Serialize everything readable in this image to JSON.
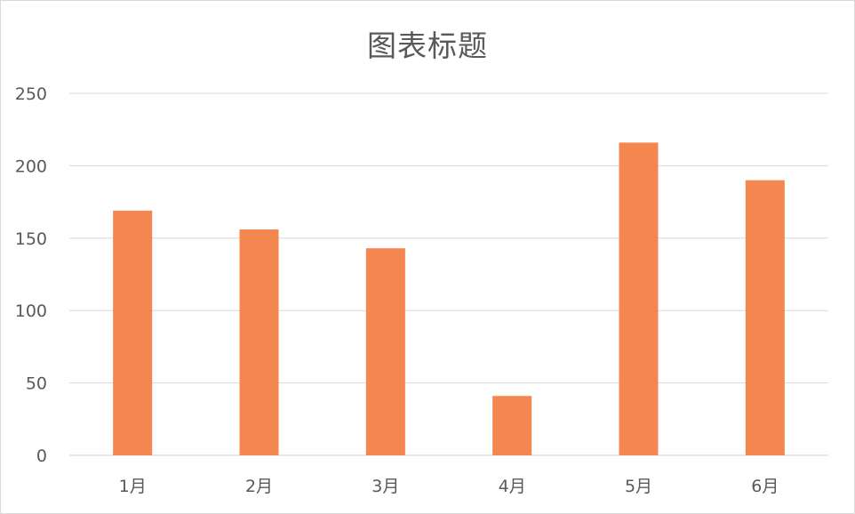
{
  "chart_data": {
    "type": "bar",
    "title": "图表标题",
    "xlabel": "",
    "ylabel": "",
    "categories": [
      "1月",
      "2月",
      "3月",
      "4月",
      "5月",
      "6月"
    ],
    "series": [
      {
        "values": [
          169,
          156,
          143,
          41,
          216,
          190
        ]
      }
    ],
    "ylim": [
      0,
      250
    ],
    "yticks": [
      "0",
      "50",
      "100",
      "150",
      "200",
      "250"
    ],
    "grid": true,
    "legend": "none",
    "bar_color": "#f4874f"
  }
}
